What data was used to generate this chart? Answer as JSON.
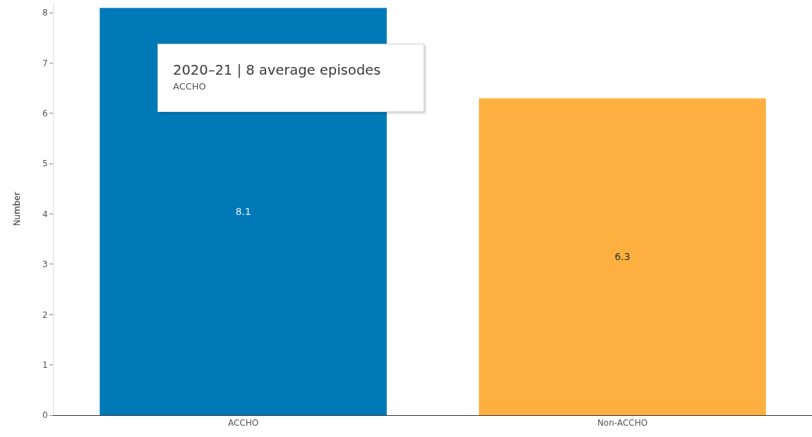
{
  "chart_data": {
    "type": "bar",
    "ylabel": "Number",
    "categories": [
      "ACCHO",
      "Non-ACCHO"
    ],
    "values": [
      8.1,
      6.3
    ],
    "colors": [
      "#0079b7",
      "#fdb040"
    ],
    "data_labels": true,
    "ylim": [
      0,
      8.2
    ],
    "yticks": [
      0,
      1,
      2,
      3,
      4,
      5,
      6,
      7,
      8
    ],
    "grid": false,
    "annotations": [
      "2020–21 | 8 average episodes",
      "ACCHO"
    ]
  }
}
